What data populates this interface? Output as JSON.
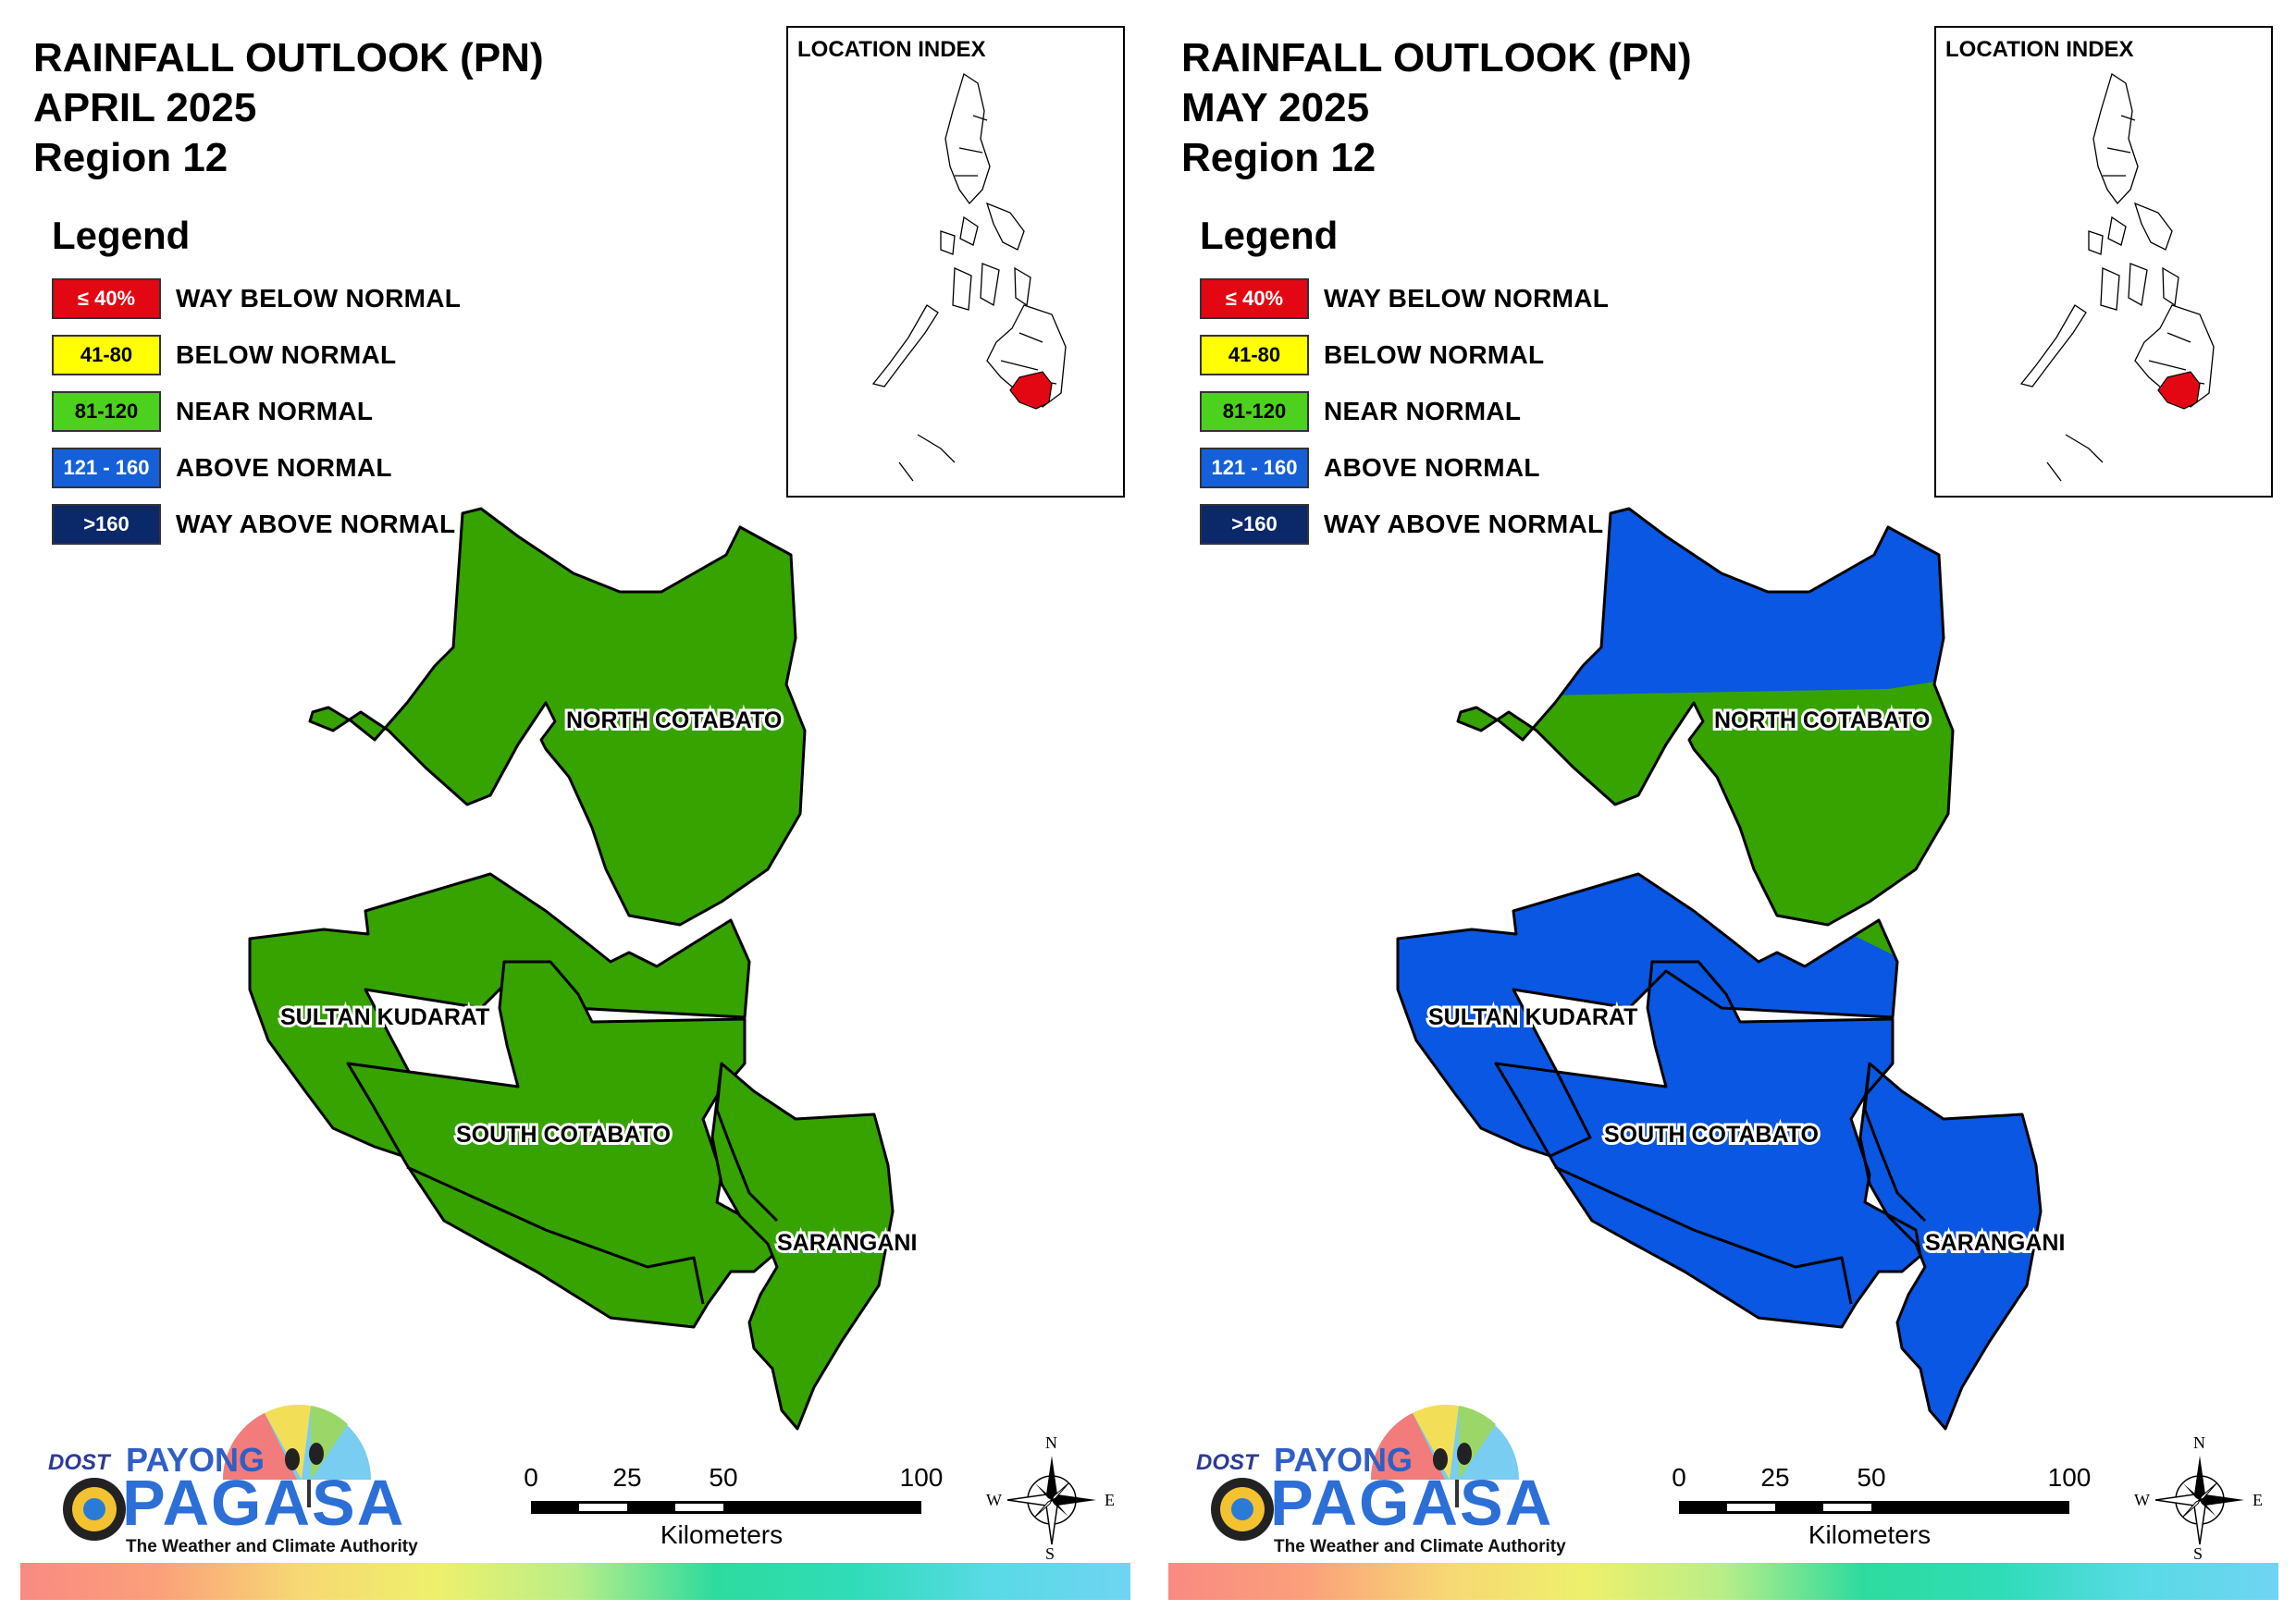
{
  "panels": [
    {
      "title": [
        "RAINFALL OUTLOOK (PN)",
        "APRIL 2025",
        "Region 12"
      ],
      "provinces": [
        {
          "name": "NORTH COTABATO",
          "category": "NEAR NORMAL"
        },
        {
          "name": "SULTAN KUDARAT",
          "category": "NEAR NORMAL"
        },
        {
          "name": "SOUTH COTABATO",
          "category": "NEAR NORMAL"
        },
        {
          "name": "SARANGANI",
          "category": "NEAR NORMAL"
        }
      ]
    },
    {
      "title": [
        "RAINFALL OUTLOOK (PN)",
        "MAY 2025",
        "Region 12"
      ],
      "provinces": [
        {
          "name": "NORTH COTABATO",
          "category": "NEAR NORMAL, ABOVE NORMAL in north"
        },
        {
          "name": "SULTAN KUDARAT",
          "category": "ABOVE NORMAL"
        },
        {
          "name": "SOUTH COTABATO",
          "category": "ABOVE NORMAL"
        },
        {
          "name": "SARANGANI",
          "category": "ABOVE NORMAL"
        }
      ]
    }
  ],
  "legend": {
    "heading": "Legend",
    "items": [
      {
        "range": "≤ 40%",
        "label": "WAY BELOW NORMAL",
        "color": "#e30613",
        "text_color": "#ffffff"
      },
      {
        "range": "41-80",
        "label": "BELOW NORMAL",
        "color": "#ffff00",
        "text_color": "#000000"
      },
      {
        "range": "81-120",
        "label": "NEAR NORMAL",
        "color": "#4cd11e",
        "text_color": "#000000"
      },
      {
        "range": "121 - 160",
        "label": "ABOVE NORMAL",
        "color": "#1560d8",
        "text_color": "#ffffff"
      },
      {
        "range": ">160",
        "label": "WAY ABOVE NORMAL",
        "color": "#0b2868",
        "text_color": "#ffffff"
      }
    ]
  },
  "location_index": {
    "title": "LOCATION INDEX",
    "highlight_color": "#e30613"
  },
  "scale": {
    "ticks": [
      "0",
      "25",
      "50",
      "100"
    ],
    "unit": "Kilometers"
  },
  "compass": {
    "north": "N",
    "south": "S",
    "east": "E",
    "west": "W"
  },
  "logo": {
    "dost": "DOST",
    "payong": "PAYONG",
    "pagasa": "PAGASA",
    "tagline": "The Weather and Climate Authority"
  },
  "map_colors": {
    "near_normal": "#36a300",
    "above_normal": "#0957e3"
  }
}
